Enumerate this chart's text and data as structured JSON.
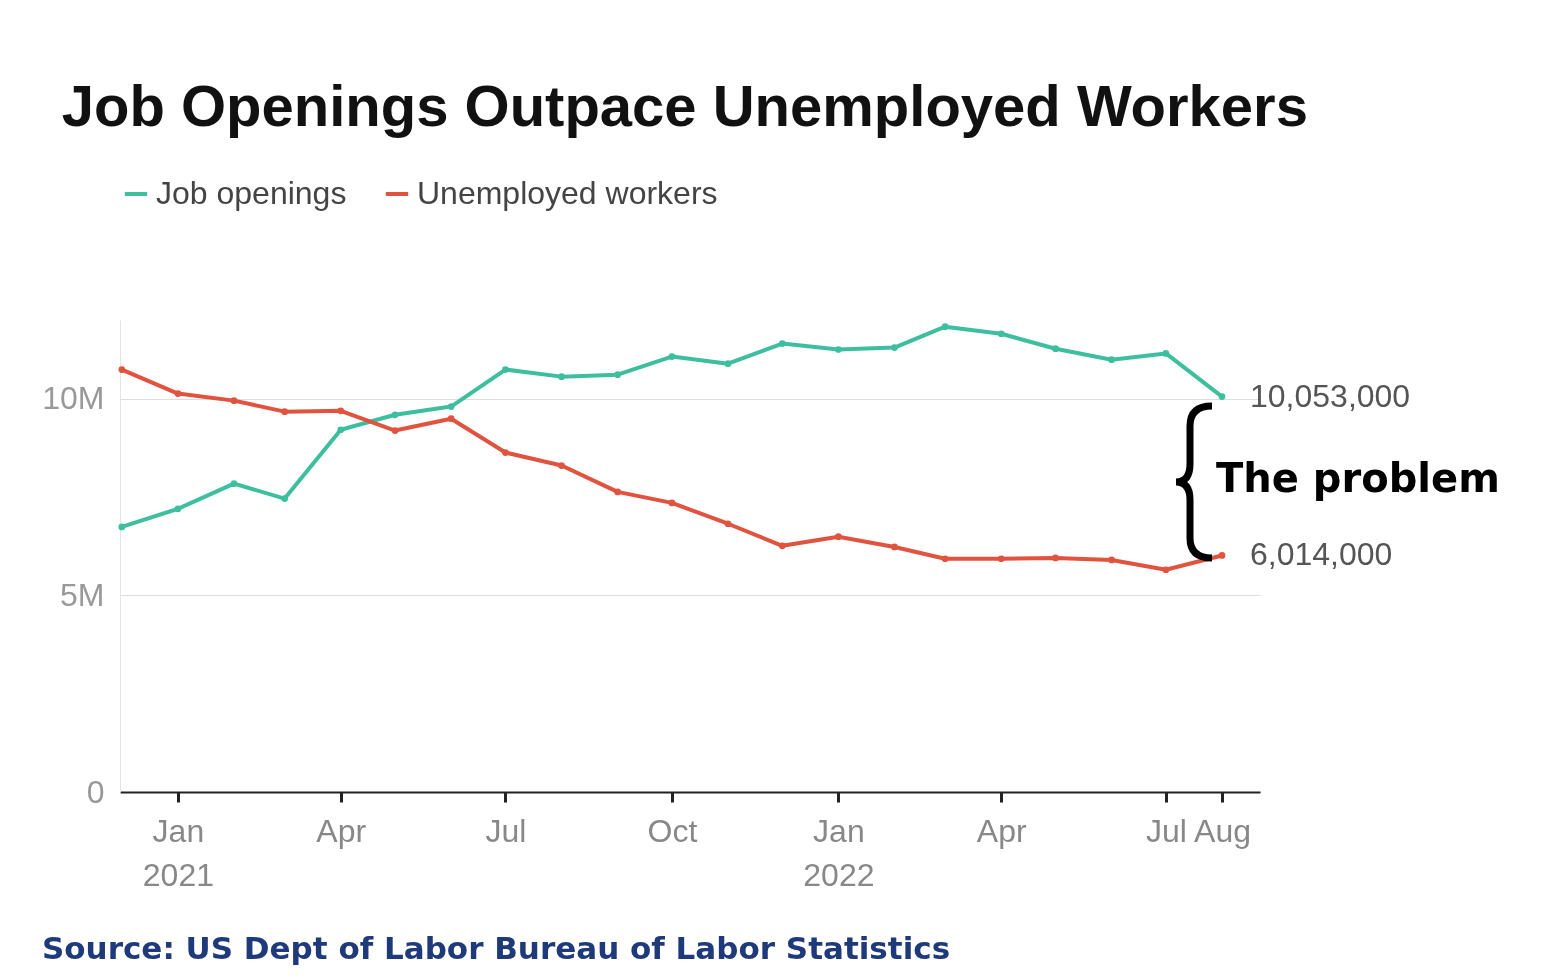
{
  "chart_data": {
    "type": "line",
    "title": "Job Openings Outpace Unemployed Workers",
    "x": [
      "2020-12-01",
      "2021-01-01",
      "2021-02-01",
      "2021-03-01",
      "2021-04-01",
      "2021-05-01",
      "2021-06-01",
      "2021-07-01",
      "2021-08-01",
      "2021-09-01",
      "2021-10-01",
      "2021-11-01",
      "2021-12-01",
      "2022-01-01",
      "2022-02-01",
      "2022-03-01",
      "2022-04-01",
      "2022-05-01",
      "2022-06-01",
      "2022-07-01",
      "2022-08-01"
    ],
    "series": [
      {
        "name": "Job openings",
        "color": "#3dbf9f",
        "values": [
          6.74,
          7.2,
          7.84,
          7.46,
          9.21,
          9.59,
          9.8,
          10.74,
          10.56,
          10.61,
          11.07,
          10.89,
          11.4,
          11.25,
          11.3,
          11.83,
          11.65,
          11.27,
          10.99,
          11.15,
          10.053
        ]
      },
      {
        "name": "Unemployed workers",
        "color": "#e0533f",
        "values": [
          10.74,
          10.13,
          9.95,
          9.67,
          9.69,
          9.19,
          9.49,
          8.63,
          8.3,
          7.63,
          7.35,
          6.82,
          6.26,
          6.49,
          6.23,
          5.93,
          5.93,
          5.95,
          5.9,
          5.65,
          6.014
        ]
      }
    ],
    "xlim": [
      "2020-11-30",
      "2022-08-22"
    ],
    "xticks": [
      {
        "value": "2021-01-01",
        "label": "Jan\n2021"
      },
      {
        "value": "2021-04-01",
        "label": "Apr"
      },
      {
        "value": "2021-07-01",
        "label": "Jul"
      },
      {
        "value": "2021-10-01",
        "label": "Oct"
      },
      {
        "value": "2022-01-01",
        "label": "Jan\n2022"
      },
      {
        "value": "2022-04-01",
        "label": "Apr"
      },
      {
        "value": "2022-07-01",
        "label": "Jul"
      },
      {
        "value": "2022-08-01",
        "label": "Aug"
      }
    ],
    "ylim": [
      0,
      12
    ],
    "yticks": [
      {
        "value": 0,
        "label": "0"
      },
      {
        "value": 5,
        "label": "5M"
      },
      {
        "value": 10,
        "label": "10M"
      }
    ],
    "grid": "y",
    "legend": "top",
    "marker": "circle",
    "line_style": "solid",
    "annotations": [
      {
        "text": "10,053,000",
        "x": "2022-08-01",
        "y": 10.053
      },
      {
        "text": "6,014,000",
        "x": "2022-08-01",
        "y": 6.014
      },
      "The problem",
      "Source: US Dept of Labor Bureau of Labor Statistics"
    ]
  }
}
